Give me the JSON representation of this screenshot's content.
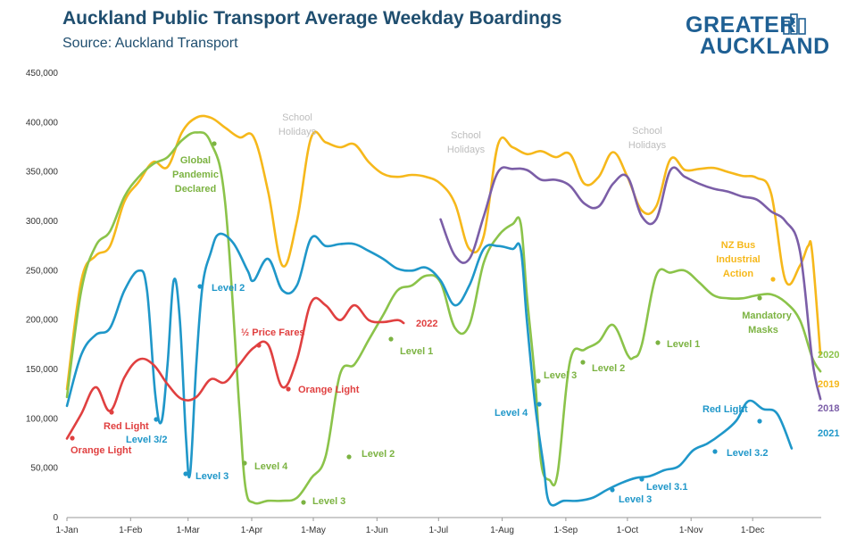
{
  "title": "Auckland Public Transport Average Weekday Boardings",
  "subtitle": "Source: Auckland Transport",
  "logo": {
    "line1": "GREATER",
    "line2": "AUCKLAND"
  },
  "chart_data": {
    "type": "line",
    "y_ticks": [
      "0",
      "50,000",
      "100,000",
      "150,000",
      "200,000",
      "250,000",
      "300,000",
      "350,000",
      "400,000",
      "450,000"
    ],
    "x_ticks": [
      "1-Jan",
      "1-Feb",
      "1-Mar",
      "1-Apr",
      "1-May",
      "1-Jun",
      "1-Jul",
      "1-Aug",
      "1-Sep",
      "1-Oct",
      "1-Nov",
      "1-Dec"
    ],
    "ylim": [
      0,
      450000
    ],
    "x_unit": "day of year",
    "grid": false,
    "legend": "series labels at right end of lines",
    "series": [
      {
        "name": "2019",
        "color": "#f6b81b",
        "points": [
          [
            1,
            130000
          ],
          [
            8,
            240000
          ],
          [
            15,
            265000
          ],
          [
            22,
            275000
          ],
          [
            29,
            320000
          ],
          [
            36,
            340000
          ],
          [
            43,
            360000
          ],
          [
            50,
            355000
          ],
          [
            57,
            390000
          ],
          [
            64,
            405000
          ],
          [
            71,
            405000
          ],
          [
            78,
            395000
          ],
          [
            85,
            385000
          ],
          [
            92,
            385000
          ],
          [
            99,
            330000
          ],
          [
            106,
            255000
          ],
          [
            113,
            300000
          ],
          [
            120,
            385000
          ],
          [
            127,
            380000
          ],
          [
            134,
            375000
          ],
          [
            141,
            378000
          ],
          [
            148,
            360000
          ],
          [
            155,
            348000
          ],
          [
            162,
            345000
          ],
          [
            169,
            347000
          ],
          [
            176,
            345000
          ],
          [
            183,
            338000
          ],
          [
            190,
            318000
          ],
          [
            197,
            272000
          ],
          [
            204,
            285000
          ],
          [
            211,
            378000
          ],
          [
            218,
            375000
          ],
          [
            225,
            368000
          ],
          [
            232,
            371000
          ],
          [
            239,
            365000
          ],
          [
            246,
            368000
          ],
          [
            253,
            338000
          ],
          [
            260,
            345000
          ],
          [
            267,
            370000
          ],
          [
            274,
            345000
          ],
          [
            281,
            311000
          ],
          [
            288,
            315000
          ],
          [
            295,
            363000
          ],
          [
            302,
            352000
          ],
          [
            309,
            353000
          ],
          [
            316,
            354000
          ],
          [
            323,
            350000
          ],
          [
            330,
            346000
          ],
          [
            337,
            344000
          ],
          [
            344,
            328000
          ],
          [
            351,
            240000
          ],
          [
            358,
            255000
          ],
          [
            362,
            275000
          ],
          [
            364,
            268000
          ],
          [
            368,
            165000
          ]
        ]
      },
      {
        "name": "2020",
        "color": "#8bc34a",
        "points": [
          [
            1,
            122000
          ],
          [
            8,
            230000
          ],
          [
            15,
            275000
          ],
          [
            22,
            290000
          ],
          [
            29,
            325000
          ],
          [
            36,
            345000
          ],
          [
            43,
            358000
          ],
          [
            50,
            365000
          ],
          [
            57,
            382000
          ],
          [
            64,
            390000
          ],
          [
            71,
            380000
          ],
          [
            78,
            320000
          ],
          [
            85,
            110000
          ],
          [
            88,
            30000
          ],
          [
            92,
            15000
          ],
          [
            99,
            17000
          ],
          [
            106,
            17000
          ],
          [
            113,
            20000
          ],
          [
            120,
            40000
          ],
          [
            127,
            62000
          ],
          [
            134,
            145000
          ],
          [
            141,
            155000
          ],
          [
            148,
            180000
          ],
          [
            155,
            205000
          ],
          [
            162,
            230000
          ],
          [
            169,
            235000
          ],
          [
            176,
            245000
          ],
          [
            183,
            238000
          ],
          [
            190,
            192000
          ],
          [
            197,
            195000
          ],
          [
            204,
            258000
          ],
          [
            211,
            285000
          ],
          [
            218,
            297000
          ],
          [
            222,
            298000
          ],
          [
            225,
            225000
          ],
          [
            229,
            140000
          ],
          [
            232,
            55000
          ],
          [
            236,
            38000
          ],
          [
            240,
            45000
          ],
          [
            246,
            158000
          ],
          [
            253,
            170000
          ],
          [
            260,
            178000
          ],
          [
            267,
            195000
          ],
          [
            274,
            165000
          ],
          [
            277,
            162000
          ],
          [
            281,
            175000
          ],
          [
            288,
            245000
          ],
          [
            295,
            248000
          ],
          [
            302,
            250000
          ],
          [
            309,
            238000
          ],
          [
            316,
            225000
          ],
          [
            323,
            222000
          ],
          [
            330,
            222000
          ],
          [
            337,
            225000
          ],
          [
            344,
            226000
          ],
          [
            351,
            218000
          ],
          [
            358,
            200000
          ],
          [
            364,
            162000
          ],
          [
            368,
            148000
          ]
        ]
      },
      {
        "name": "2018",
        "color": "#7b5ea7",
        "points": [
          [
            183,
            302000
          ],
          [
            190,
            265000
          ],
          [
            197,
            262000
          ],
          [
            204,
            305000
          ],
          [
            211,
            350000
          ],
          [
            218,
            353000
          ],
          [
            225,
            352000
          ],
          [
            232,
            342000
          ],
          [
            239,
            342000
          ],
          [
            246,
            336000
          ],
          [
            253,
            318000
          ],
          [
            260,
            315000
          ],
          [
            267,
            338000
          ],
          [
            274,
            345000
          ],
          [
            281,
            305000
          ],
          [
            288,
            302000
          ],
          [
            295,
            352000
          ],
          [
            302,
            345000
          ],
          [
            309,
            338000
          ],
          [
            316,
            333000
          ],
          [
            323,
            330000
          ],
          [
            330,
            325000
          ],
          [
            337,
            322000
          ],
          [
            344,
            310000
          ],
          [
            351,
            300000
          ],
          [
            358,
            270000
          ],
          [
            364,
            160000
          ],
          [
            368,
            120000
          ]
        ]
      },
      {
        "name": "2021",
        "color": "#1f97c9",
        "points": [
          [
            1,
            113000
          ],
          [
            8,
            165000
          ],
          [
            15,
            185000
          ],
          [
            22,
            192000
          ],
          [
            29,
            230000
          ],
          [
            36,
            250000
          ],
          [
            40,
            230000
          ],
          [
            44,
            125000
          ],
          [
            47,
            97000
          ],
          [
            50,
            155000
          ],
          [
            53,
            240000
          ],
          [
            56,
            200000
          ],
          [
            59,
            80000
          ],
          [
            61,
            45000
          ],
          [
            64,
            155000
          ],
          [
            67,
            234000
          ],
          [
            71,
            268000
          ],
          [
            75,
            287000
          ],
          [
            82,
            278000
          ],
          [
            89,
            250000
          ],
          [
            92,
            240000
          ],
          [
            99,
            262000
          ],
          [
            106,
            230000
          ],
          [
            113,
            235000
          ],
          [
            120,
            283000
          ],
          [
            127,
            275000
          ],
          [
            134,
            277000
          ],
          [
            141,
            277000
          ],
          [
            148,
            270000
          ],
          [
            155,
            262000
          ],
          [
            162,
            252000
          ],
          [
            169,
            250000
          ],
          [
            176,
            253000
          ],
          [
            183,
            240000
          ],
          [
            190,
            215000
          ],
          [
            197,
            235000
          ],
          [
            204,
            272000
          ],
          [
            211,
            275000
          ],
          [
            218,
            272000
          ],
          [
            222,
            272000
          ],
          [
            225,
            200000
          ],
          [
            229,
            115000
          ],
          [
            233,
            55000
          ],
          [
            236,
            15000
          ],
          [
            243,
            17000
          ],
          [
            250,
            17000
          ],
          [
            257,
            20000
          ],
          [
            264,
            28000
          ],
          [
            271,
            35000
          ],
          [
            278,
            40000
          ],
          [
            285,
            42000
          ],
          [
            292,
            48000
          ],
          [
            299,
            52000
          ],
          [
            306,
            68000
          ],
          [
            313,
            75000
          ],
          [
            320,
            85000
          ],
          [
            327,
            98000
          ],
          [
            333,
            118000
          ],
          [
            340,
            110000
          ],
          [
            347,
            105000
          ],
          [
            354,
            70000
          ]
        ]
      },
      {
        "name": "2022",
        "color": "#e04040",
        "points": [
          [
            1,
            80000
          ],
          [
            8,
            105000
          ],
          [
            15,
            132000
          ],
          [
            22,
            108000
          ],
          [
            29,
            142000
          ],
          [
            36,
            160000
          ],
          [
            43,
            155000
          ],
          [
            50,
            135000
          ],
          [
            57,
            120000
          ],
          [
            64,
            122000
          ],
          [
            71,
            140000
          ],
          [
            78,
            137000
          ],
          [
            85,
            155000
          ],
          [
            92,
            172000
          ],
          [
            99,
            175000
          ],
          [
            106,
            132000
          ],
          [
            113,
            160000
          ],
          [
            120,
            218000
          ],
          [
            127,
            215000
          ],
          [
            134,
            200000
          ],
          [
            141,
            215000
          ],
          [
            148,
            200000
          ],
          [
            155,
            198000
          ],
          [
            162,
            200000
          ],
          [
            165,
            197000
          ]
        ]
      }
    ],
    "annotations": [
      {
        "text": "School",
        "color": "#bdbdbd"
      },
      {
        "text": "Holidays",
        "color": "#bdbdbd"
      },
      {
        "text": "School",
        "color": "#bdbdbd"
      },
      {
        "text": "Holidays",
        "color": "#bdbdbd"
      },
      {
        "text": "School",
        "color": "#bdbdbd"
      },
      {
        "text": "Holidays",
        "color": "#bdbdbd"
      },
      {
        "text": "Global",
        "color": "#7cb342"
      },
      {
        "text": "Pandemic",
        "color": "#7cb342"
      },
      {
        "text": "Declared",
        "color": "#7cb342"
      },
      {
        "text": "Level 2",
        "color": "#1f97c9"
      },
      {
        "text": "½ Price Fares",
        "color": "#e04040"
      },
      {
        "text": "2022",
        "color": "#e04040"
      },
      {
        "text": "Orange Light",
        "color": "#e04040"
      },
      {
        "text": "Red Light",
        "color": "#e04040"
      },
      {
        "text": "Orange Light",
        "color": "#e04040"
      },
      {
        "text": "Level 3/2",
        "color": "#1f97c9"
      },
      {
        "text": "Level 3",
        "color": "#1f97c9"
      },
      {
        "text": "Level 4",
        "color": "#7cb342"
      },
      {
        "text": "Level 3",
        "color": "#7cb342"
      },
      {
        "text": "Level 2",
        "color": "#7cb342"
      },
      {
        "text": "Level 1",
        "color": "#7cb342"
      },
      {
        "text": "Level 3",
        "color": "#7cb342"
      },
      {
        "text": "Level 4",
        "color": "#1f97c9"
      },
      {
        "text": "Level 2",
        "color": "#7cb342"
      },
      {
        "text": "Level 3",
        "color": "#1f97c9"
      },
      {
        "text": "Level 3.1",
        "color": "#1f97c9"
      },
      {
        "text": "Level 1",
        "color": "#7cb342"
      },
      {
        "text": "Level 3.2",
        "color": "#1f97c9"
      },
      {
        "text": "Red Light",
        "color": "#1f97c9"
      },
      {
        "text": "NZ Bus",
        "color": "#f6b81b"
      },
      {
        "text": "Industrial",
        "color": "#f6b81b"
      },
      {
        "text": "Action",
        "color": "#f6b81b"
      },
      {
        "text": "Mandatory",
        "color": "#7cb342"
      },
      {
        "text": "Masks",
        "color": "#7cb342"
      }
    ]
  }
}
